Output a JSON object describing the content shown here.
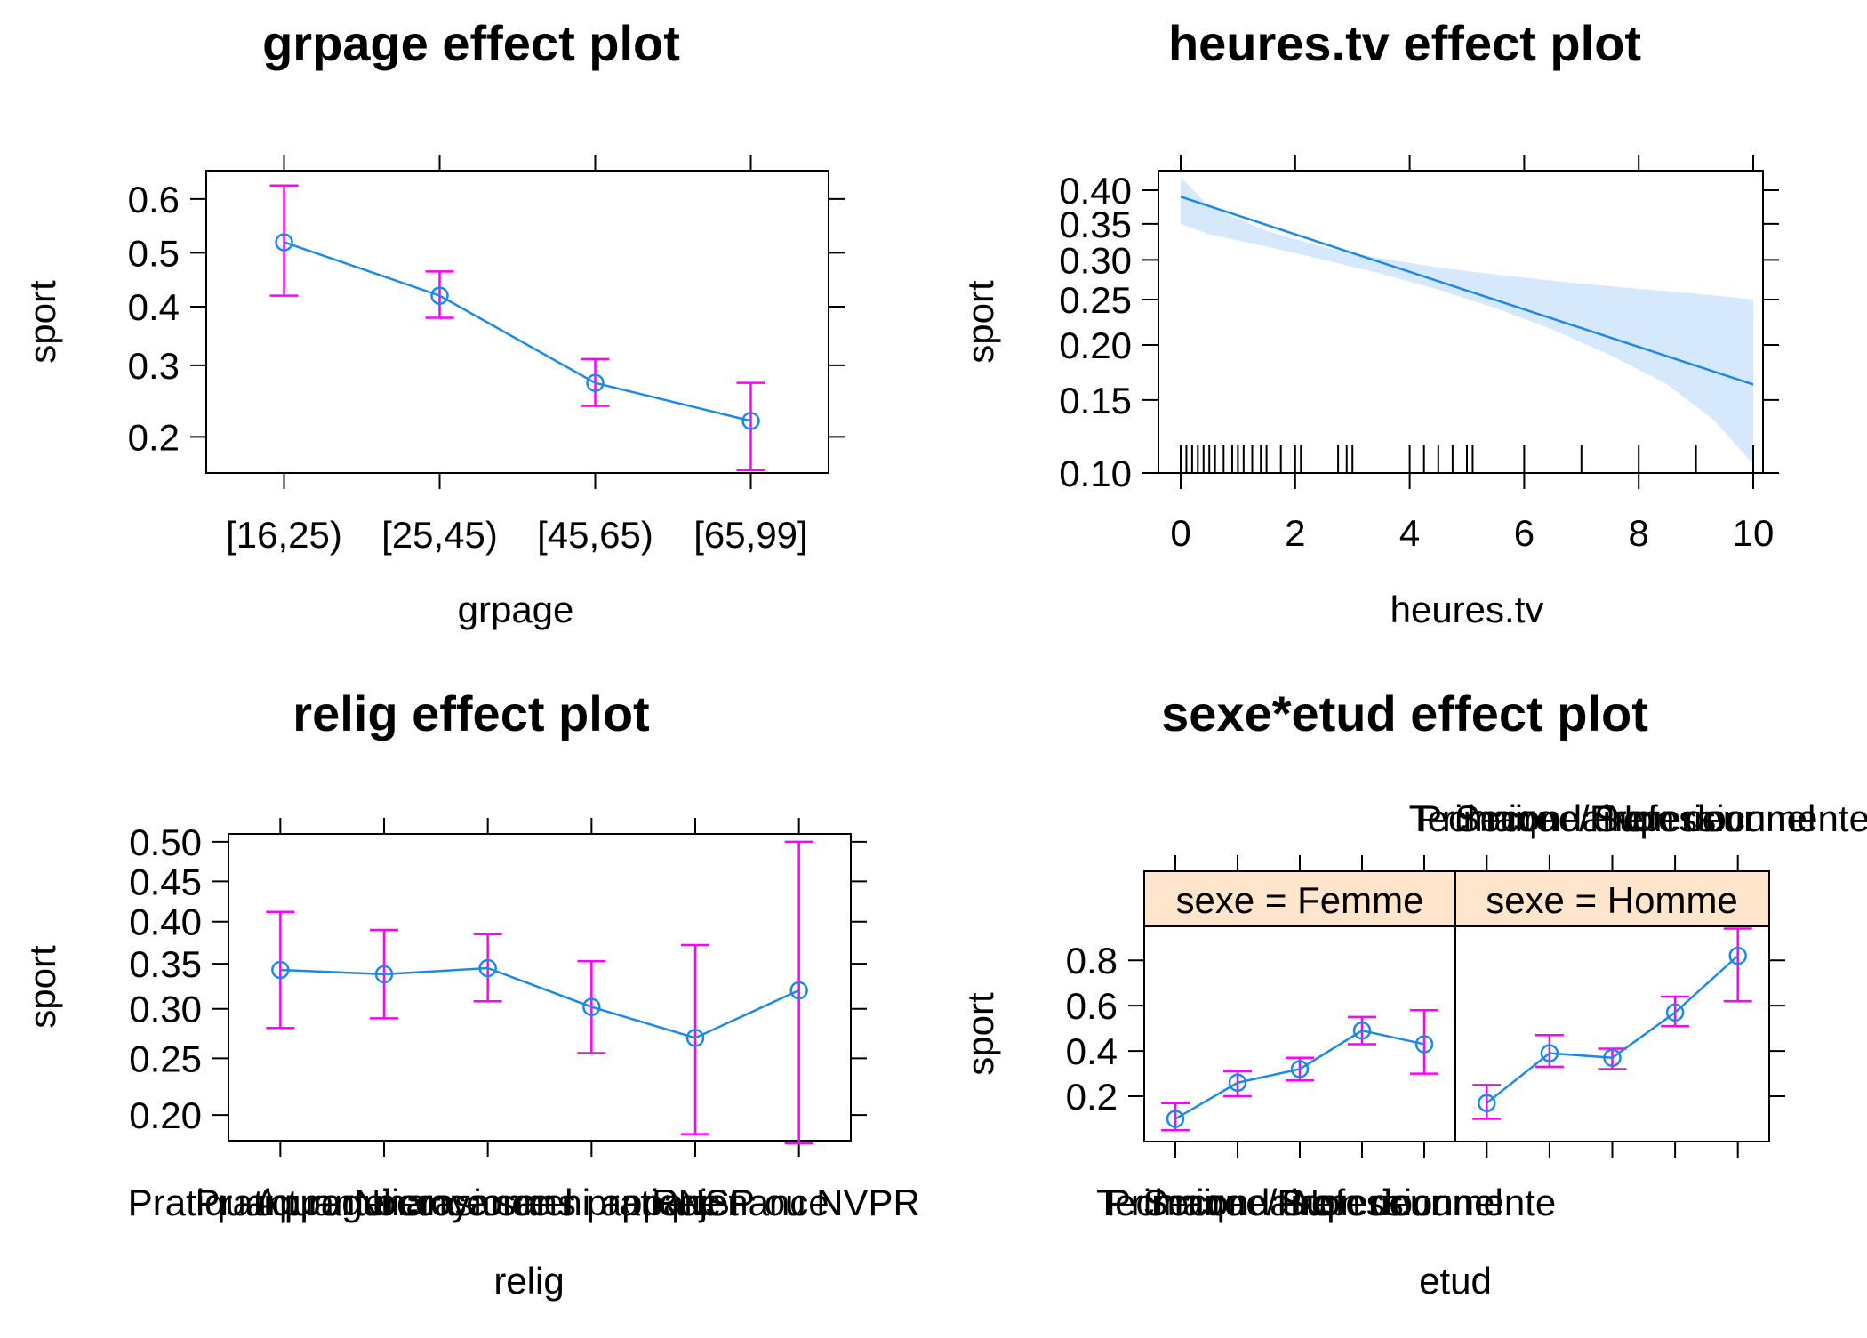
{
  "colors": {
    "line": "#1E88E5",
    "ci": "#FF00FF",
    "band": "#D6E9FC",
    "strip": "#FFE5CC",
    "axis": "#000000"
  },
  "chart_data": [
    {
      "id": "p1",
      "type": "line",
      "title": "grpage effect plot",
      "xlabel": "grpage",
      "ylabel": "sport",
      "categories": [
        "[16,25)",
        "[25,45)",
        "[45,65)",
        "[65,99]"
      ],
      "values": [
        0.52,
        0.42,
        0.273,
        0.22
      ],
      "lower": [
        0.42,
        0.38,
        0.24,
        0.163
      ],
      "upper": [
        0.624,
        0.465,
        0.31,
        0.273
      ],
      "yticks": [
        "0.2",
        "0.3",
        "0.4",
        "0.5",
        "0.6"
      ],
      "ylim": [
        0.16,
        0.65
      ],
      "yscale": "logit"
    },
    {
      "id": "p2",
      "type": "line",
      "title": "heures.tv effect plot",
      "xlabel": "heures.tv",
      "ylabel": "sport",
      "x": [
        0,
        10
      ],
      "values": [
        0.39,
        0.163
      ],
      "band_lower": [
        0.35,
        0.335,
        0.318,
        0.3,
        0.282,
        0.262,
        0.24,
        0.216,
        0.19,
        0.163,
        0.135,
        0.105
      ],
      "band_upper": [
        0.42,
        0.375,
        0.34,
        0.317,
        0.302,
        0.29,
        0.281,
        0.273,
        0.266,
        0.26,
        0.255,
        0.25
      ],
      "band_x": [
        0,
        0.5,
        1.5,
        2.5,
        3.5,
        4.5,
        5.5,
        6.5,
        7.5,
        8.5,
        9.3,
        10
      ],
      "rug": [
        0,
        0.1,
        0.2,
        0.3,
        0.4,
        0.5,
        0.6,
        0.75,
        0.9,
        1,
        1.1,
        1.25,
        1.4,
        1.5,
        1.75,
        2,
        2.1,
        2.75,
        2.9,
        3,
        4,
        4.25,
        4.5,
        4.75,
        5,
        5.1,
        6,
        7,
        8,
        9,
        10
      ],
      "xticks": [
        "0",
        "2",
        "4",
        "6",
        "8",
        "10"
      ],
      "xlim": [
        0,
        10
      ],
      "yticks": [
        "0.10",
        "0.15",
        "0.20",
        "0.25",
        "0.30",
        "0.35",
        "0.40"
      ],
      "ylim": [
        0.1,
        0.43
      ],
      "yscale": "logit"
    },
    {
      "id": "p3",
      "type": "line",
      "title": "relig effect plot",
      "xlabel": "relig",
      "ylabel": "sport",
      "categories": [
        "Pratiquant regulier",
        "Pratiquant occasionnel",
        "Appartenance sans pratique",
        "Ni croyance ni appartenance",
        "Rejet",
        "NSP ou NVPR"
      ],
      "values": [
        0.343,
        0.338,
        0.345,
        0.302,
        0.27,
        0.32
      ],
      "lower": [
        0.28,
        0.29,
        0.308,
        0.255,
        0.185,
        0.178
      ],
      "upper": [
        0.412,
        0.39,
        0.385,
        0.353,
        0.372,
        0.5
      ],
      "yticks": [
        "0.20",
        "0.25",
        "0.30",
        "0.35",
        "0.40",
        "0.45",
        "0.50"
      ],
      "ylim": [
        0.18,
        0.51
      ],
      "yscale": "logit"
    },
    {
      "id": "p4",
      "type": "line",
      "title": "sexe*etud effect plot",
      "xlabel": "etud",
      "ylabel": "sport",
      "categories": [
        "Primaire",
        "Secondaire",
        "Technique/Professionnel",
        "Superieur",
        "Non documente"
      ],
      "panels": [
        {
          "strip": "sexe = Femme",
          "values": [
            0.1,
            0.26,
            0.32,
            0.49,
            0.43
          ],
          "lower": [
            0.05,
            0.2,
            0.27,
            0.43,
            0.3
          ],
          "upper": [
            0.17,
            0.31,
            0.37,
            0.55,
            0.58
          ]
        },
        {
          "strip": "sexe = Homme",
          "values": [
            0.17,
            0.39,
            0.37,
            0.57,
            0.82
          ],
          "lower": [
            0.1,
            0.33,
            0.32,
            0.51,
            0.62
          ],
          "upper": [
            0.25,
            0.47,
            0.41,
            0.64,
            0.94
          ]
        }
      ],
      "yticks": [
        "0.2",
        "0.4",
        "0.6",
        "0.8"
      ],
      "ylim": [
        0.0,
        0.95
      ],
      "yscale": "linear"
    }
  ]
}
